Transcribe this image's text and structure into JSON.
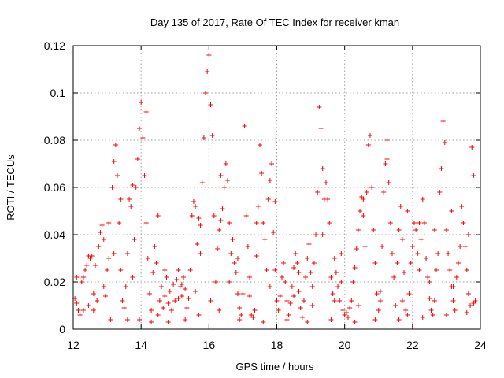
{
  "chart_data": {
    "type": "scatter",
    "title": "Day 135 of 2017, Rate Of TEC Index for receiver kman",
    "xlabel": "GPS time / hours",
    "ylabel": "ROTI / TECUs",
    "xlim": [
      12,
      24
    ],
    "ylim": [
      0,
      0.12
    ],
    "x_ticks": [
      12,
      14,
      16,
      18,
      20,
      22,
      24
    ],
    "x_tick_labels": [
      "12",
      "14",
      "16",
      "18",
      "20",
      "22",
      "24"
    ],
    "y_ticks": [
      0,
      0.02,
      0.04,
      0.06,
      0.08,
      0.1,
      0.12
    ],
    "y_tick_labels": [
      "0",
      "0.02",
      "0.04",
      "0.06",
      "0.08",
      "0.1",
      "0.12"
    ],
    "grid": true,
    "marker": "plus",
    "marker_color": "#ff0000",
    "series": [
      {
        "points": [
          [
            12.05,
            0.013
          ],
          [
            12.1,
            0.011
          ],
          [
            12.15,
            0.008
          ],
          [
            12.2,
            0.006
          ],
          [
            12.25,
            0.02
          ],
          [
            12.3,
            0.022
          ],
          [
            12.35,
            0.025
          ],
          [
            12.4,
            0.027
          ],
          [
            12.45,
            0.01
          ],
          [
            12.5,
            0.03
          ],
          [
            12.55,
            0.031
          ],
          [
            12.6,
            0.008
          ],
          [
            12.65,
            0.027
          ],
          [
            12.7,
            0.012
          ],
          [
            12.75,
            0.035
          ],
          [
            12.8,
            0.041
          ],
          [
            12.85,
            0.044
          ],
          [
            12.9,
            0.038
          ],
          [
            12.95,
            0.014
          ],
          [
            13.0,
            0.025
          ],
          [
            13.05,
            0.03
          ],
          [
            13.1,
            0.004
          ],
          [
            13.15,
            0.06
          ],
          [
            13.2,
            0.071
          ],
          [
            13.25,
            0.078
          ],
          [
            13.3,
            0.065
          ],
          [
            13.35,
            0.045
          ],
          [
            13.4,
            0.025
          ],
          [
            13.45,
            0.012
          ],
          [
            13.5,
            0.009
          ],
          [
            13.55,
            0.018
          ],
          [
            13.6,
            0.032
          ],
          [
            13.65,
            0.055
          ],
          [
            13.7,
            0.052
          ],
          [
            13.75,
            0.022
          ],
          [
            13.8,
            0.038
          ],
          [
            13.85,
            0.06
          ],
          [
            13.9,
            0.072
          ],
          [
            13.95,
            0.085
          ],
          [
            14.0,
            0.096
          ],
          [
            14.05,
            0.081
          ],
          [
            14.1,
            0.065
          ],
          [
            14.15,
            0.045
          ],
          [
            14.2,
            0.03
          ],
          [
            14.25,
            0.015
          ],
          [
            14.3,
            0.008
          ],
          [
            14.35,
            0.024
          ],
          [
            14.4,
            0.035
          ],
          [
            14.45,
            0.028
          ],
          [
            14.5,
            0.006
          ],
          [
            14.55,
            0.012
          ],
          [
            14.6,
            0.018
          ],
          [
            14.65,
            0.009
          ],
          [
            14.7,
            0.014
          ],
          [
            14.75,
            0.022
          ],
          [
            14.8,
            0.011
          ],
          [
            14.85,
            0.016
          ],
          [
            14.9,
            0.008
          ],
          [
            14.95,
            0.019
          ],
          [
            15.0,
            0.012
          ],
          [
            15.05,
            0.021
          ],
          [
            15.1,
            0.025
          ],
          [
            15.15,
            0.018
          ],
          [
            15.2,
            0.014
          ],
          [
            15.25,
            0.022
          ],
          [
            15.3,
            0.017
          ],
          [
            15.35,
            0.009
          ],
          [
            15.4,
            0.013
          ],
          [
            15.45,
            0.025
          ],
          [
            15.5,
            0.048
          ],
          [
            15.55,
            0.054
          ],
          [
            15.6,
            0.052
          ],
          [
            15.65,
            0.036
          ],
          [
            15.7,
            0.047
          ],
          [
            15.75,
            0.032
          ],
          [
            15.8,
            0.062
          ],
          [
            15.85,
            0.081
          ],
          [
            15.9,
            0.1
          ],
          [
            15.95,
            0.109
          ],
          [
            16.0,
            0.116
          ],
          [
            16.05,
            0.095
          ],
          [
            16.1,
            0.082
          ],
          [
            16.15,
            0.048
          ],
          [
            16.2,
            0.02
          ],
          [
            16.25,
            0.034
          ],
          [
            16.3,
            0.042
          ],
          [
            16.35,
            0.046
          ],
          [
            16.4,
            0.051
          ],
          [
            16.45,
            0.06
          ],
          [
            16.5,
            0.07
          ],
          [
            16.55,
            0.063
          ],
          [
            16.6,
            0.045
          ],
          [
            16.65,
            0.032
          ],
          [
            16.7,
            0.038
          ],
          [
            16.75,
            0.028
          ],
          [
            16.8,
            0.024
          ],
          [
            16.85,
            0.015
          ],
          [
            16.9,
            0.009
          ],
          [
            16.95,
            0.006
          ],
          [
            17.0,
            0.015
          ],
          [
            17.05,
            0.086
          ],
          [
            17.1,
            0.048
          ],
          [
            17.15,
            0.035
          ],
          [
            17.2,
            0.022
          ],
          [
            17.25,
            0.006
          ],
          [
            17.3,
            0.005
          ],
          [
            17.35,
            0.008
          ],
          [
            17.4,
            0.031
          ],
          [
            17.45,
            0.052
          ],
          [
            17.5,
            0.078
          ],
          [
            17.55,
            0.066
          ],
          [
            17.6,
            0.045
          ],
          [
            17.65,
            0.038
          ],
          [
            17.7,
            0.025
          ],
          [
            17.75,
            0.055
          ],
          [
            17.8,
            0.063
          ],
          [
            17.85,
            0.07
          ],
          [
            17.9,
            0.041
          ],
          [
            17.95,
            0.025
          ],
          [
            18.0,
            0.012
          ],
          [
            18.05,
            0.008
          ],
          [
            18.1,
            0.014
          ],
          [
            18.15,
            0.022
          ],
          [
            18.2,
            0.028
          ],
          [
            18.25,
            0.02
          ],
          [
            18.3,
            0.012
          ],
          [
            18.35,
            0.006
          ],
          [
            18.4,
            0.011
          ],
          [
            18.45,
            0.018
          ],
          [
            18.5,
            0.026
          ],
          [
            18.55,
            0.032
          ],
          [
            18.6,
            0.028
          ],
          [
            18.65,
            0.016
          ],
          [
            18.7,
            0.009
          ],
          [
            18.75,
            0.005
          ],
          [
            18.8,
            0.012
          ],
          [
            18.85,
            0.022
          ],
          [
            18.9,
            0.03
          ],
          [
            18.95,
            0.036
          ],
          [
            19.0,
            0.024
          ],
          [
            19.05,
            0.018
          ],
          [
            19.1,
            0.028
          ],
          [
            19.15,
            0.04
          ],
          [
            19.2,
            0.058
          ],
          [
            19.25,
            0.094
          ],
          [
            19.3,
            0.085
          ],
          [
            19.35,
            0.068
          ],
          [
            19.4,
            0.055
          ],
          [
            19.45,
            0.062
          ],
          [
            19.5,
            0.055
          ],
          [
            19.55,
            0.045
          ],
          [
            19.6,
            0.022
          ],
          [
            19.65,
            0.015
          ],
          [
            19.7,
            0.03
          ],
          [
            19.75,
            0.024
          ],
          [
            19.8,
            0.018
          ],
          [
            19.85,
            0.012
          ],
          [
            19.9,
            0.02
          ],
          [
            19.95,
            0.008
          ],
          [
            20.0,
            0.006
          ],
          [
            20.05,
            0.007
          ],
          [
            20.1,
            0.005
          ],
          [
            20.15,
            0.009
          ],
          [
            20.2,
            0.012
          ],
          [
            20.25,
            0.02
          ],
          [
            20.3,
            0.026
          ],
          [
            20.35,
            0.034
          ],
          [
            20.4,
            0.042
          ],
          [
            20.45,
            0.05
          ],
          [
            20.5,
            0.056
          ],
          [
            20.55,
            0.048
          ],
          [
            20.6,
            0.035
          ],
          [
            20.65,
            0.058
          ],
          [
            20.7,
            0.078
          ],
          [
            20.75,
            0.082
          ],
          [
            20.8,
            0.06
          ],
          [
            20.85,
            0.042
          ],
          [
            20.9,
            0.028
          ],
          [
            20.95,
            0.015
          ],
          [
            21.0,
            0.008
          ],
          [
            21.05,
            0.012
          ],
          [
            21.1,
            0.035
          ],
          [
            21.15,
            0.058
          ],
          [
            21.2,
            0.07
          ],
          [
            21.25,
            0.08
          ],
          [
            21.3,
            0.062
          ],
          [
            21.35,
            0.045
          ],
          [
            21.4,
            0.032
          ],
          [
            21.45,
            0.022
          ],
          [
            21.5,
            0.01
          ],
          [
            21.55,
            0.028
          ],
          [
            21.6,
            0.042
          ],
          [
            21.65,
            0.052
          ],
          [
            21.7,
            0.038
          ],
          [
            21.75,
            0.024
          ],
          [
            21.8,
            0.008
          ],
          [
            21.85,
            0.006
          ],
          [
            21.9,
            0.015
          ],
          [
            21.95,
            0.028
          ],
          [
            22.0,
            0.035
          ],
          [
            22.05,
            0.045
          ],
          [
            22.1,
            0.042
          ],
          [
            22.15,
            0.032
          ],
          [
            22.2,
            0.025
          ],
          [
            22.25,
            0.038
          ],
          [
            22.3,
            0.055
          ],
          [
            22.35,
            0.045
          ],
          [
            22.4,
            0.03
          ],
          [
            22.45,
            0.022
          ],
          [
            22.5,
            0.013
          ],
          [
            22.55,
            0.008
          ],
          [
            22.6,
            0.006
          ],
          [
            22.65,
            0.012
          ],
          [
            22.7,
            0.025
          ],
          [
            22.75,
            0.032
          ],
          [
            22.8,
            0.058
          ],
          [
            22.85,
            0.068
          ],
          [
            22.9,
            0.088
          ],
          [
            22.95,
            0.079
          ],
          [
            23.0,
            0.042
          ],
          [
            23.05,
            0.032
          ],
          [
            23.1,
            0.025
          ],
          [
            23.15,
            0.018
          ],
          [
            23.2,
            0.012
          ],
          [
            23.25,
            0.008
          ],
          [
            23.3,
            0.022
          ],
          [
            23.35,
            0.028
          ],
          [
            23.4,
            0.035
          ],
          [
            23.45,
            0.052
          ],
          [
            23.5,
            0.045
          ],
          [
            23.55,
            0.035
          ],
          [
            23.6,
            0.025
          ],
          [
            23.65,
            0.015
          ],
          [
            23.7,
            0.01
          ],
          [
            23.75,
            0.077
          ],
          [
            23.8,
            0.065
          ],
          [
            23.85,
            0.012
          ],
          [
            12.1,
            0.022
          ],
          [
            12.6,
            0.015
          ],
          [
            13.2,
            0.032
          ],
          [
            13.6,
            0.004
          ],
          [
            13.95,
            0.004
          ],
          [
            14.3,
            0.003
          ],
          [
            14.8,
            0.003
          ],
          [
            15.3,
            0.004
          ],
          [
            15.7,
            0.006
          ],
          [
            16.3,
            0.008
          ],
          [
            16.9,
            0.004
          ],
          [
            17.6,
            0.003
          ],
          [
            18.3,
            0.004
          ],
          [
            18.9,
            0.003
          ],
          [
            19.6,
            0.004
          ],
          [
            20.3,
            0.003
          ],
          [
            20.9,
            0.004
          ],
          [
            21.6,
            0.004
          ],
          [
            22.3,
            0.005
          ],
          [
            23.0,
            0.006
          ],
          [
            23.6,
            0.007
          ],
          [
            12.3,
            0.008
          ],
          [
            12.9,
            0.018
          ],
          [
            13.4,
            0.055
          ],
          [
            14.15,
            0.092
          ],
          [
            14.7,
            0.025
          ],
          [
            15.1,
            0.013
          ],
          [
            15.6,
            0.016
          ],
          [
            16.05,
            0.012
          ],
          [
            16.6,
            0.02
          ],
          [
            17.2,
            0.014
          ],
          [
            17.8,
            0.018
          ],
          [
            18.5,
            0.014
          ],
          [
            19.05,
            0.01
          ],
          [
            19.7,
            0.012
          ],
          [
            20.4,
            0.01
          ],
          [
            21.05,
            0.016
          ],
          [
            21.7,
            0.012
          ],
          [
            22.5,
            0.02
          ],
          [
            23.2,
            0.018
          ],
          [
            23.8,
            0.011
          ],
          [
            12.45,
            0.031
          ],
          [
            13.05,
            0.045
          ],
          [
            13.75,
            0.061
          ],
          [
            14.5,
            0.048
          ],
          [
            15.2,
            0.019
          ],
          [
            15.75,
            0.044
          ],
          [
            16.35,
            0.065
          ],
          [
            16.85,
            0.03
          ],
          [
            17.4,
            0.045
          ],
          [
            17.95,
            0.054
          ],
          [
            18.65,
            0.024
          ],
          [
            19.35,
            0.04
          ],
          [
            19.9,
            0.032
          ],
          [
            20.55,
            0.055
          ],
          [
            21.25,
            0.072
          ],
          [
            21.85,
            0.05
          ],
          [
            22.2,
            0.045
          ],
          [
            22.65,
            0.042
          ],
          [
            23.15,
            0.05
          ],
          [
            23.65,
            0.04
          ]
        ]
      }
    ]
  }
}
